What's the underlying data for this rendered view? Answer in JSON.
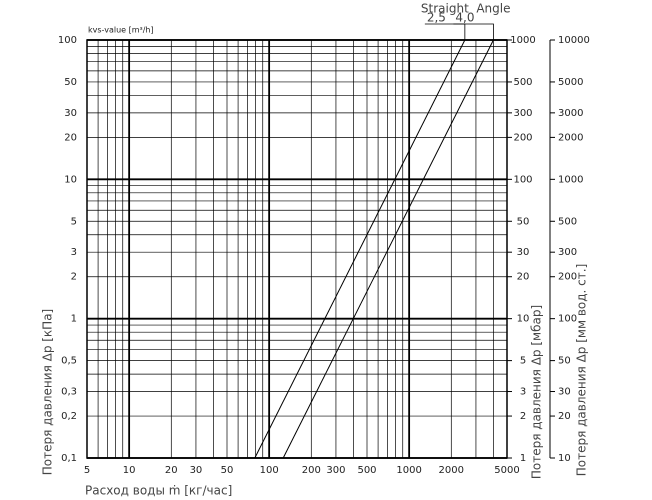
{
  "chart_data": {
    "type": "line",
    "log_x": true,
    "log_y": true,
    "xlabel": "Расход воды ṁ [кг/час]",
    "ylabel": "Потеря давления Δp [кПа]",
    "y2label": "Потеря давления Δp [мбар]",
    "y3label": "Потеря давления Δp [мм вод. ст.]",
    "corner_label": "kvs-value [m³/h]",
    "xlim": [
      5,
      5000
    ],
    "xticks": [
      5,
      10,
      20,
      30,
      50,
      100,
      200,
      300,
      500,
      1000,
      2000,
      5000
    ],
    "xgrid": [
      5,
      6,
      7,
      8,
      9,
      10,
      20,
      30,
      40,
      50,
      60,
      70,
      80,
      90,
      100,
      200,
      300,
      400,
      500,
      600,
      700,
      800,
      900,
      1000,
      2000,
      3000,
      4000,
      5000
    ],
    "ylim": [
      0.1,
      100
    ],
    "yticks": [
      {
        "value": 0.1,
        "label": "0,1"
      },
      {
        "value": 0.2,
        "label": "0,2"
      },
      {
        "value": 0.3,
        "label": "0,3"
      },
      {
        "value": 0.5,
        "label": "0,5"
      },
      1,
      2,
      3,
      5,
      10,
      20,
      30,
      50,
      100
    ],
    "ygrid": [
      0.1,
      0.2,
      0.3,
      0.4,
      0.5,
      0.6,
      0.7,
      0.8,
      0.9,
      1,
      2,
      3,
      4,
      5,
      6,
      7,
      8,
      9,
      10,
      20,
      30,
      40,
      50,
      60,
      70,
      80,
      90,
      100
    ],
    "y2lim": [
      1,
      1000
    ],
    "y2ticks": [
      1,
      2,
      3,
      5,
      10,
      20,
      30,
      50,
      100,
      200,
      300,
      500,
      1000
    ],
    "y3lim": [
      10,
      10000
    ],
    "y3ticks": [
      10,
      20,
      30,
      50,
      100,
      200,
      300,
      500,
      1000,
      2000,
      3000,
      5000,
      10000
    ],
    "grid": true,
    "series": [
      {
        "name": "Straight",
        "kvs_label": "2,5",
        "color": "#000000",
        "x": [
          79,
          2500
        ],
        "values": [
          0.1,
          100
        ]
      },
      {
        "name": "Angle",
        "kvs_label": "4,0",
        "color": "#000000",
        "x": [
          126,
          4000
        ],
        "values": [
          0.1,
          100
        ]
      }
    ]
  }
}
